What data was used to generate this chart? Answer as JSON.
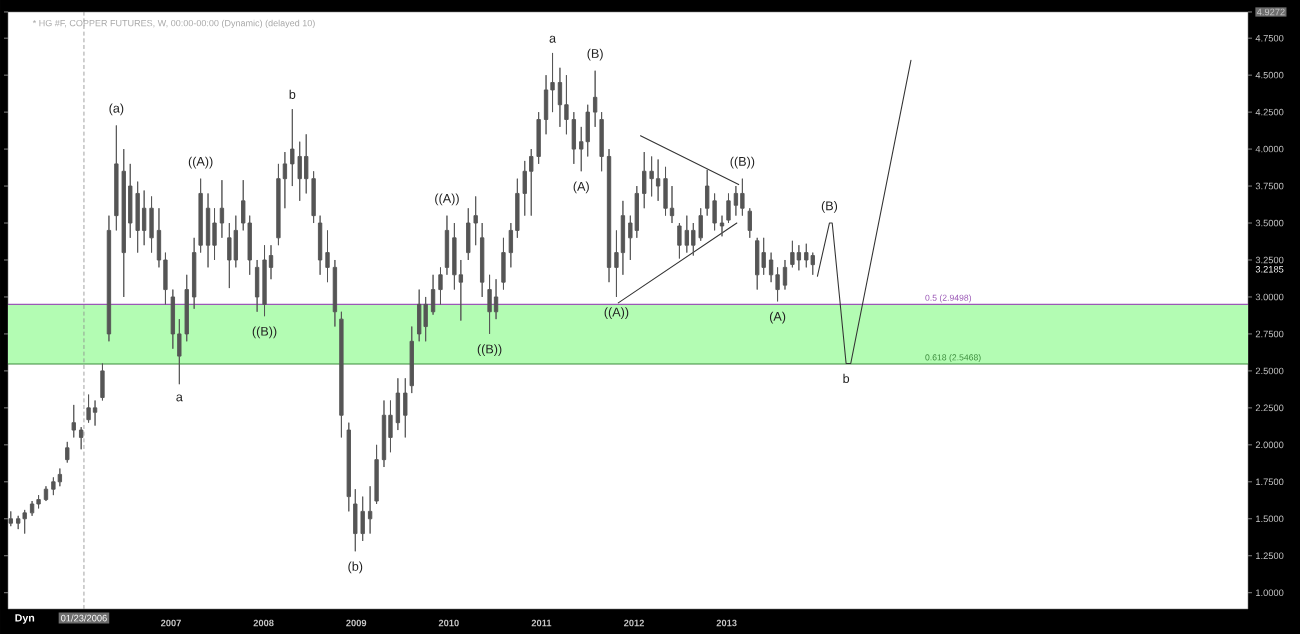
{
  "chart_data": {
    "type": "candlestick",
    "title": "* HG #F, COPPER FUTURES, W, 00:00-00:00 (Dynamic) (delayed 10)",
    "x": [
      2005.27,
      2005.35,
      2005.42,
      2005.5,
      2005.57,
      2005.65,
      2005.73,
      2005.8,
      2005.88,
      2005.95,
      2006.03,
      2006.11,
      2006.18,
      2006.26,
      2006.33,
      2006.41,
      2006.49,
      2006.56,
      2006.64,
      2006.71,
      2006.79,
      2006.87,
      2006.94,
      2007.02,
      2007.09,
      2007.17,
      2007.25,
      2007.32,
      2007.4,
      2007.47,
      2007.55,
      2007.63,
      2007.7,
      2007.78,
      2007.85,
      2007.93,
      2008.01,
      2008.08,
      2008.16,
      2008.23,
      2008.31,
      2008.39,
      2008.46,
      2008.54,
      2008.61,
      2008.69,
      2008.77,
      2008.84,
      2008.92,
      2008.99,
      2009.07,
      2009.15,
      2009.22,
      2009.3,
      2009.37,
      2009.45,
      2009.53,
      2009.6,
      2009.68,
      2009.75,
      2009.83,
      2009.91,
      2009.98,
      2010.06,
      2010.13,
      2010.21,
      2010.29,
      2010.36,
      2010.44,
      2010.51,
      2010.59,
      2010.67,
      2010.74,
      2010.82,
      2010.89,
      2010.97,
      2011.05,
      2011.12,
      2011.2,
      2011.27,
      2011.35,
      2011.43,
      2011.5,
      2011.58,
      2011.65,
      2011.73,
      2011.81,
      2011.88,
      2011.96,
      2012.03,
      2012.11,
      2012.19,
      2012.26,
      2012.34,
      2012.41,
      2012.49,
      2012.57,
      2012.64,
      2012.72,
      2012.79,
      2012.87,
      2012.95,
      2013.02,
      2013.1,
      2013.17,
      2013.25,
      2013.33,
      2013.4,
      2013.48,
      2013.55,
      2013.63,
      2013.71,
      2013.78,
      2013.86,
      2013.93
    ],
    "ohlc": [
      [
        1.5,
        1.55,
        1.45,
        1.47
      ],
      [
        1.47,
        1.52,
        1.43,
        1.5
      ],
      [
        1.5,
        1.56,
        1.4,
        1.54
      ],
      [
        1.54,
        1.62,
        1.52,
        1.6
      ],
      [
        1.6,
        1.66,
        1.57,
        1.63
      ],
      [
        1.63,
        1.72,
        1.62,
        1.7
      ],
      [
        1.7,
        1.78,
        1.66,
        1.75
      ],
      [
        1.75,
        1.84,
        1.72,
        1.8
      ],
      [
        1.9,
        2.02,
        1.88,
        1.98
      ],
      [
        2.1,
        2.27,
        2.05,
        2.15
      ],
      [
        2.1,
        2.12,
        1.97,
        2.05
      ],
      [
        2.17,
        2.34,
        2.15,
        2.25
      ],
      [
        2.25,
        2.3,
        2.13,
        2.22
      ],
      [
        2.32,
        2.55,
        2.3,
        2.5
      ],
      [
        2.75,
        3.55,
        2.7,
        3.45
      ],
      [
        3.55,
        4.16,
        3.45,
        3.9
      ],
      [
        3.85,
        4.0,
        3.0,
        3.3
      ],
      [
        3.5,
        3.9,
        3.4,
        3.75
      ],
      [
        3.7,
        3.78,
        3.3,
        3.45
      ],
      [
        3.45,
        3.72,
        3.35,
        3.6
      ],
      [
        3.6,
        3.68,
        3.3,
        3.4
      ],
      [
        3.45,
        3.6,
        3.2,
        3.25
      ],
      [
        3.25,
        3.3,
        2.95,
        3.05
      ],
      [
        3.0,
        3.05,
        2.65,
        2.75
      ],
      [
        2.75,
        2.85,
        2.41,
        2.6
      ],
      [
        2.75,
        3.15,
        2.7,
        3.05
      ],
      [
        3.0,
        3.4,
        2.92,
        3.3
      ],
      [
        3.35,
        3.8,
        3.3,
        3.7
      ],
      [
        3.6,
        3.7,
        3.2,
        3.35
      ],
      [
        3.35,
        3.6,
        3.25,
        3.5
      ],
      [
        3.5,
        3.79,
        3.4,
        3.6
      ],
      [
        3.4,
        3.5,
        3.06,
        3.25
      ],
      [
        3.25,
        3.55,
        3.2,
        3.45
      ],
      [
        3.5,
        3.79,
        3.45,
        3.65
      ],
      [
        3.5,
        3.55,
        3.15,
        3.25
      ],
      [
        3.2,
        3.25,
        2.9,
        3.0
      ],
      [
        2.95,
        3.35,
        2.87,
        3.25
      ],
      [
        3.2,
        3.35,
        3.12,
        3.28
      ],
      [
        3.4,
        3.9,
        3.35,
        3.8
      ],
      [
        3.8,
        3.98,
        3.6,
        3.9
      ],
      [
        3.9,
        4.27,
        3.75,
        4.0
      ],
      [
        3.95,
        4.05,
        3.65,
        3.8
      ],
      [
        3.8,
        4.1,
        3.7,
        3.95
      ],
      [
        3.8,
        3.85,
        3.5,
        3.55
      ],
      [
        3.5,
        3.55,
        3.15,
        3.25
      ],
      [
        3.3,
        3.45,
        3.1,
        3.2
      ],
      [
        3.2,
        3.25,
        2.8,
        2.9
      ],
      [
        2.85,
        2.9,
        2.05,
        2.2
      ],
      [
        2.1,
        2.15,
        1.55,
        1.65
      ],
      [
        1.6,
        1.7,
        1.28,
        1.4
      ],
      [
        1.4,
        1.65,
        1.35,
        1.55
      ],
      [
        1.55,
        1.72,
        1.4,
        1.5
      ],
      [
        1.62,
        2.0,
        1.6,
        1.9
      ],
      [
        1.9,
        2.3,
        1.85,
        2.2
      ],
      [
        2.2,
        2.3,
        1.95,
        2.05
      ],
      [
        2.15,
        2.45,
        2.1,
        2.35
      ],
      [
        2.35,
        2.45,
        2.05,
        2.2
      ],
      [
        2.4,
        2.8,
        2.35,
        2.7
      ],
      [
        2.75,
        3.05,
        2.7,
        2.95
      ],
      [
        2.95,
        3.0,
        2.7,
        2.8
      ],
      [
        2.9,
        3.15,
        2.88,
        3.05
      ],
      [
        3.05,
        3.2,
        2.95,
        3.15
      ],
      [
        3.2,
        3.55,
        3.15,
        3.45
      ],
      [
        3.4,
        3.5,
        3.05,
        3.15
      ],
      [
        3.15,
        3.25,
        2.84,
        3.1
      ],
      [
        3.3,
        3.6,
        3.25,
        3.5
      ],
      [
        3.5,
        3.68,
        3.35,
        3.55
      ],
      [
        3.4,
        3.5,
        3.0,
        3.1
      ],
      [
        3.05,
        3.15,
        2.75,
        2.9
      ],
      [
        2.9,
        3.12,
        2.85,
        3.0
      ],
      [
        3.1,
        3.4,
        3.05,
        3.3
      ],
      [
        3.3,
        3.5,
        3.2,
        3.45
      ],
      [
        3.45,
        3.8,
        3.4,
        3.7
      ],
      [
        3.7,
        3.92,
        3.55,
        3.85
      ],
      [
        3.85,
        4.0,
        3.55,
        3.95
      ],
      [
        3.95,
        4.25,
        3.9,
        4.2
      ],
      [
        4.2,
        4.5,
        4.1,
        4.4
      ],
      [
        4.4,
        4.65,
        4.25,
        4.45
      ],
      [
        4.45,
        4.55,
        4.15,
        4.3
      ],
      [
        4.3,
        4.5,
        4.1,
        4.2
      ],
      [
        4.2,
        4.25,
        3.9,
        4.0
      ],
      [
        4.0,
        4.15,
        3.85,
        4.05
      ],
      [
        4.05,
        4.3,
        3.95,
        4.25
      ],
      [
        4.25,
        4.53,
        4.15,
        4.35
      ],
      [
        4.2,
        4.25,
        3.85,
        3.95
      ],
      [
        3.95,
        4.0,
        3.1,
        3.2
      ],
      [
        3.2,
        3.45,
        3.0,
        3.3
      ],
      [
        3.3,
        3.65,
        3.15,
        3.55
      ],
      [
        3.5,
        3.55,
        3.25,
        3.4
      ],
      [
        3.45,
        3.75,
        3.4,
        3.7
      ],
      [
        3.7,
        3.98,
        3.6,
        3.85
      ],
      [
        3.85,
        3.95,
        3.68,
        3.8
      ],
      [
        3.8,
        3.93,
        3.65,
        3.75
      ],
      [
        3.8,
        3.88,
        3.55,
        3.6
      ],
      [
        3.6,
        3.75,
        3.5,
        3.55
      ],
      [
        3.48,
        3.5,
        3.26,
        3.35
      ],
      [
        3.35,
        3.55,
        3.3,
        3.45
      ],
      [
        3.45,
        3.5,
        3.28,
        3.35
      ],
      [
        3.4,
        3.6,
        3.38,
        3.55
      ],
      [
        3.6,
        3.86,
        3.55,
        3.75
      ],
      [
        3.65,
        3.7,
        3.45,
        3.5
      ],
      [
        3.5,
        3.55,
        3.41,
        3.48
      ],
      [
        3.52,
        3.7,
        3.5,
        3.65
      ],
      [
        3.62,
        3.75,
        3.55,
        3.7
      ],
      [
        3.7,
        3.8,
        3.55,
        3.6
      ],
      [
        3.58,
        3.6,
        3.4,
        3.45
      ],
      [
        3.38,
        3.4,
        3.05,
        3.15
      ],
      [
        3.2,
        3.4,
        3.15,
        3.3
      ],
      [
        3.25,
        3.3,
        3.1,
        3.15
      ],
      [
        3.15,
        3.2,
        2.97,
        3.05
      ],
      [
        3.08,
        3.25,
        3.05,
        3.2
      ],
      [
        3.22,
        3.38,
        3.2,
        3.3
      ],
      [
        3.3,
        3.35,
        3.18,
        3.25
      ],
      [
        3.25,
        3.36,
        3.2,
        3.3
      ],
      [
        3.28,
        3.3,
        3.15,
        3.2185
      ]
    ],
    "color": "#555555",
    "series": [
      {
        "type": "line",
        "x": [
          2013.98,
          2014.11,
          2014.14,
          2014.29,
          2014.34,
          2014.99
        ],
        "values": [
          3.14,
          3.5,
          3.5,
          2.55,
          2.55,
          4.6
        ],
        "color": "#333333"
      },
      {
        "type": "line",
        "x": [
          2012.07,
          2013.13
        ],
        "values": [
          4.09,
          3.76
        ],
        "color": "#333333"
      },
      {
        "type": "line",
        "x": [
          2011.83,
          2013.11
        ],
        "values": [
          2.96,
          3.5
        ],
        "color": "#333333"
      }
    ],
    "xlim": [
      2005.24,
      2018.63
    ],
    "ylim": [
      0.89,
      4.9272
    ],
    "xticks": [
      2007,
      2008,
      2009,
      2010,
      2011,
      2012,
      2013
    ],
    "yticks": [
      {
        "value": 1.0,
        "label": "1.0000"
      },
      {
        "value": 1.25,
        "label": "1.2500"
      },
      {
        "value": 1.5,
        "label": "1.5000"
      },
      {
        "value": 1.75,
        "label": "1.7500"
      },
      {
        "value": 2.0,
        "label": "2.0000"
      },
      {
        "value": 2.25,
        "label": "2.2500"
      },
      {
        "value": 2.5,
        "label": "2.5000"
      },
      {
        "value": 2.75,
        "label": "2.7500"
      },
      {
        "value": 3.0,
        "label": "3.0000"
      },
      {
        "value": 3.25,
        "label": "3.2500"
      },
      {
        "value": 3.5,
        "label": "3.5000"
      },
      {
        "value": 3.75,
        "label": "3.7500"
      },
      {
        "value": 4.0,
        "label": "4.0000"
      },
      {
        "value": 4.25,
        "label": "4.2500"
      },
      {
        "value": 4.5,
        "label": "4.5000"
      },
      {
        "value": 4.75,
        "label": "4.7500"
      },
      4.9272
    ],
    "ref_lines": [
      {
        "axis": "x",
        "value": 2006.06,
        "label": "01/23/2006",
        "color": "#8c8c8c",
        "line_style": "dashed"
      },
      {
        "axis": "y",
        "value": 2.9498,
        "label": "0.5 (2.9498)",
        "color": "#9b59b6"
      },
      {
        "axis": "y",
        "value": 2.5468,
        "label": "0.618 (2.5468)",
        "color": "#3c8c3c"
      }
    ],
    "bands": [
      {
        "axis": "y",
        "from": 2.5468,
        "to": 2.9498,
        "color": "#b3fcb3"
      }
    ],
    "annotations": [
      {
        "text": "(a)",
        "x": 2006.41,
        "y": 4.16
      },
      {
        "text": "a",
        "x": 2007.09,
        "y": 2.41
      },
      {
        "text": "((A))",
        "x": 2007.32,
        "y": 3.8
      },
      {
        "text": "((B))",
        "x": 2008.01,
        "y": 2.87
      },
      {
        "text": "b",
        "x": 2008.31,
        "y": 4.27
      },
      {
        "text": "(b)",
        "x": 2008.99,
        "y": 1.28
      },
      {
        "text": "((A))",
        "x": 2009.98,
        "y": 3.55
      },
      {
        "text": "((B))",
        "x": 2010.44,
        "y": 2.75
      },
      {
        "text": "a",
        "x": 2011.12,
        "y": 4.65
      },
      {
        "text": "(A)",
        "x": 2011.43,
        "y": 3.85
      },
      {
        "text": "(B)",
        "x": 2011.58,
        "y": 4.53
      },
      {
        "text": "((A))",
        "x": 2011.81,
        "y": 3.0
      },
      {
        "text": "((B))",
        "x": 2013.17,
        "y": 3.8
      },
      {
        "text": "(A)",
        "x": 2013.55,
        "y": 2.97
      },
      {
        "text": "(B)",
        "x": 2014.11,
        "y": 3.5
      },
      {
        "text": "b",
        "x": 2014.29,
        "y": 2.55
      },
      "3.2185",
      "Dyn"
    ]
  }
}
